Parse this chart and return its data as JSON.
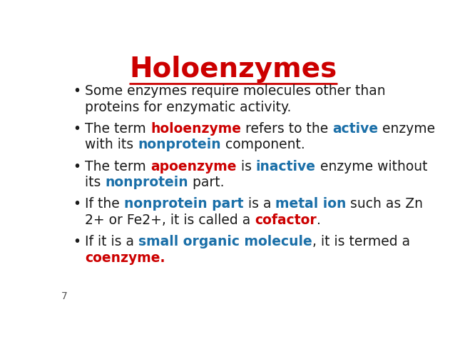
{
  "title": "Holoenzymes",
  "title_color": "#cc0000",
  "background_color": "#ffffff",
  "slide_number": "7",
  "font_family": "DejaVu Sans",
  "title_font_size": 28,
  "body_font_size": 13.5,
  "bullet_char": "•",
  "fig_width": 6.38,
  "fig_height": 4.79,
  "dpi": 100,
  "black": "#1a1a1a",
  "red": "#cc0000",
  "blue": "#1a6fa8",
  "bullets": [
    {
      "lines": [
        [
          {
            "text": "Some enzymes require molecules other than",
            "color": "#1a1a1a",
            "bold": false
          }
        ],
        [
          {
            "text": "proteins for enzymatic activity.",
            "color": "#1a1a1a",
            "bold": false
          }
        ]
      ]
    },
    {
      "lines": [
        [
          {
            "text": "The term ",
            "color": "#1a1a1a",
            "bold": false
          },
          {
            "text": "holoenzyme",
            "color": "#cc0000",
            "bold": true
          },
          {
            "text": " refers to the ",
            "color": "#1a1a1a",
            "bold": false
          },
          {
            "text": "active",
            "color": "#1a6fa8",
            "bold": true
          },
          {
            "text": " enzyme",
            "color": "#1a1a1a",
            "bold": false
          }
        ],
        [
          {
            "text": "with its ",
            "color": "#1a1a1a",
            "bold": false
          },
          {
            "text": "nonprotein",
            "color": "#1a6fa8",
            "bold": true
          },
          {
            "text": " component.",
            "color": "#1a1a1a",
            "bold": false
          }
        ]
      ]
    },
    {
      "lines": [
        [
          {
            "text": "The term ",
            "color": "#1a1a1a",
            "bold": false
          },
          {
            "text": "apoenzyme",
            "color": "#cc0000",
            "bold": true
          },
          {
            "text": " is ",
            "color": "#1a1a1a",
            "bold": false
          },
          {
            "text": "inactive",
            "color": "#1a6fa8",
            "bold": true
          },
          {
            "text": " enzyme without",
            "color": "#1a1a1a",
            "bold": false
          }
        ],
        [
          {
            "text": "its ",
            "color": "#1a1a1a",
            "bold": false
          },
          {
            "text": "nonprotein",
            "color": "#1a6fa8",
            "bold": true
          },
          {
            "text": " part.",
            "color": "#1a1a1a",
            "bold": false
          }
        ]
      ]
    },
    {
      "lines": [
        [
          {
            "text": "If the ",
            "color": "#1a1a1a",
            "bold": false
          },
          {
            "text": "nonprotein part",
            "color": "#1a6fa8",
            "bold": true
          },
          {
            "text": " is a ",
            "color": "#1a1a1a",
            "bold": false
          },
          {
            "text": "metal ion",
            "color": "#1a6fa8",
            "bold": true
          },
          {
            "text": " such as Zn",
            "color": "#1a1a1a",
            "bold": false
          }
        ],
        [
          {
            "text": "2+ or Fe2+, it is called a ",
            "color": "#1a1a1a",
            "bold": false
          },
          {
            "text": "cofactor",
            "color": "#cc0000",
            "bold": true
          },
          {
            "text": ".",
            "color": "#1a1a1a",
            "bold": false
          }
        ]
      ]
    },
    {
      "lines": [
        [
          {
            "text": "If it is a ",
            "color": "#1a1a1a",
            "bold": false
          },
          {
            "text": "small organic molecule",
            "color": "#1a6fa8",
            "bold": true
          },
          {
            "text": ", it is termed a",
            "color": "#1a1a1a",
            "bold": false
          }
        ],
        [
          {
            "text": "coenzyme.",
            "color": "#cc0000",
            "bold": true
          }
        ]
      ]
    }
  ]
}
